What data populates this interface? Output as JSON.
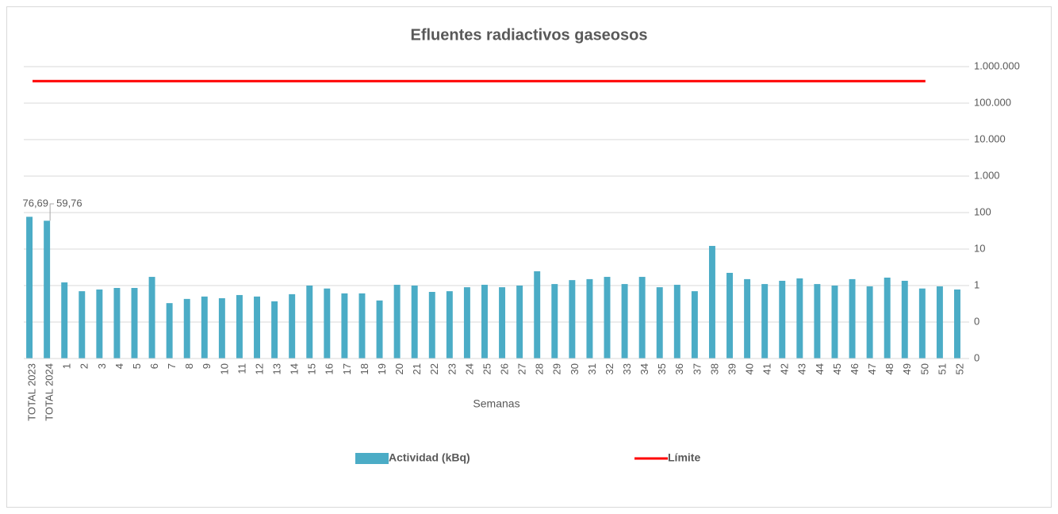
{
  "chart_data": {
    "type": "bar",
    "title": "Efluentes radiactivos gaseosos",
    "x_label": "Semanas",
    "categories": [
      "TOTAL 2023",
      "TOTAL 2024",
      "1",
      "2",
      "3",
      "4",
      "5",
      "6",
      "7",
      "8",
      "9",
      "10",
      "11",
      "12",
      "13",
      "14",
      "15",
      "16",
      "17",
      "18",
      "19",
      "20",
      "21",
      "22",
      "23",
      "24",
      "25",
      "26",
      "27",
      "28",
      "29",
      "30",
      "31",
      "32",
      "33",
      "34",
      "35",
      "36",
      "37",
      "38",
      "39",
      "40",
      "41",
      "42",
      "43",
      "44",
      "45",
      "46",
      "47",
      "48",
      "49",
      "50",
      "51",
      "52"
    ],
    "series": [
      {
        "name": "Actividad (kBq)",
        "type": "bar",
        "color": "#4bacc6",
        "values": [
          76.69,
          59.76,
          1.22,
          0.7,
          0.78,
          0.86,
          0.86,
          1.73,
          0.33,
          0.43,
          0.5,
          0.45,
          0.55,
          0.5,
          0.37,
          0.58,
          1.0,
          0.83,
          0.61,
          0.61,
          0.39,
          1.05,
          1.0,
          0.67,
          0.7,
          0.9,
          1.05,
          0.9,
          1.0,
          2.46,
          1.1,
          1.41,
          1.5,
          1.73,
          1.1,
          1.73,
          0.9,
          1.05,
          0.7,
          12.2,
          2.23,
          1.5,
          1.1,
          1.35,
          1.57,
          1.1,
          1.0,
          1.5,
          0.95,
          1.65,
          1.35,
          0.83,
          0.95,
          0.78
        ],
        "value_labels": [
          "76,69",
          "59,76",
          null,
          null,
          null,
          null,
          null,
          null,
          null,
          null,
          null,
          null,
          null,
          null,
          null,
          null,
          null,
          null,
          null,
          null,
          null,
          null,
          null,
          null,
          null,
          null,
          null,
          null,
          null,
          null,
          null,
          null,
          null,
          null,
          null,
          null,
          null,
          null,
          null,
          null,
          null,
          null,
          null,
          null,
          null,
          null,
          null,
          null,
          null,
          null,
          null,
          null,
          null,
          null
        ]
      },
      {
        "name": "Límite",
        "type": "line",
        "color": "#ff0000",
        "values": [
          400000,
          400000,
          400000,
          400000,
          400000,
          400000,
          400000,
          400000,
          400000,
          400000,
          400000,
          400000,
          400000,
          400000,
          400000,
          400000,
          400000,
          400000,
          400000,
          400000,
          400000,
          400000,
          400000,
          400000,
          400000,
          400000,
          400000,
          400000,
          400000,
          400000,
          400000,
          400000,
          400000,
          400000,
          400000,
          400000,
          400000,
          400000,
          400000,
          400000,
          400000,
          400000,
          400000,
          400000,
          400000,
          400000,
          400000,
          400000,
          400000,
          400000,
          400000,
          400000,
          null,
          null
        ]
      }
    ],
    "log_scale": true,
    "grid": true,
    "legend": "bottom",
    "ylim": [
      0.01,
      1000000
    ],
    "yticks": [
      {
        "value": 0.01,
        "label": "0"
      },
      {
        "value": 0.1,
        "label": "0"
      },
      1,
      10,
      100,
      {
        "value": 1000,
        "label": "1.000"
      },
      {
        "value": 10000,
        "label": "10.000"
      },
      {
        "value": 100000,
        "label": "100.000"
      },
      {
        "value": 1000000,
        "label": "1.000.000"
      }
    ]
  }
}
